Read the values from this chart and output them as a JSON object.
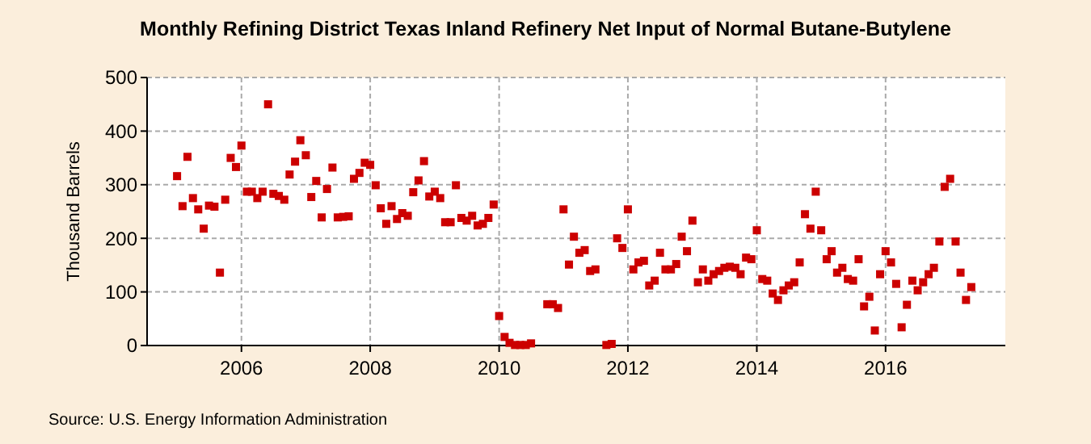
{
  "chart_data": {
    "type": "scatter",
    "title": "Monthly Refining District Texas Inland Refinery Net Input of Normal Butane-Butylene",
    "ylabel": "Thousand Barrels",
    "annotations": [
      "Source: U.S. Energy Information Administration"
    ],
    "x": [
      "2005-01",
      "2005-02",
      "2005-03",
      "2005-04",
      "2005-05",
      "2005-06",
      "2005-07",
      "2005-08",
      "2005-09",
      "2005-10",
      "2005-11",
      "2005-12",
      "2006-01",
      "2006-02",
      "2006-03",
      "2006-04",
      "2006-05",
      "2006-06",
      "2006-07",
      "2006-08",
      "2006-09",
      "2006-10",
      "2006-11",
      "2006-12",
      "2007-01",
      "2007-02",
      "2007-03",
      "2007-04",
      "2007-05",
      "2007-06",
      "2007-07",
      "2007-08",
      "2007-09",
      "2007-10",
      "2007-11",
      "2007-12",
      "2008-01",
      "2008-02",
      "2008-03",
      "2008-04",
      "2008-05",
      "2008-06",
      "2008-07",
      "2008-08",
      "2008-09",
      "2008-10",
      "2008-11",
      "2008-12",
      "2009-01",
      "2009-02",
      "2009-03",
      "2009-04",
      "2009-05",
      "2009-06",
      "2009-07",
      "2009-08",
      "2009-09",
      "2009-10",
      "2009-11",
      "2009-12",
      "2010-01",
      "2010-02",
      "2010-03",
      "2010-04",
      "2010-05",
      "2010-06",
      "2010-07",
      "2010-08",
      "2010-09",
      "2010-10",
      "2010-11",
      "2010-12",
      "2011-01",
      "2011-02",
      "2011-03",
      "2011-04",
      "2011-05",
      "2011-06",
      "2011-07",
      "2011-08",
      "2011-09",
      "2011-10",
      "2011-11",
      "2011-12",
      "2012-01",
      "2012-02",
      "2012-03",
      "2012-04",
      "2012-05",
      "2012-06",
      "2012-07",
      "2012-08",
      "2012-09",
      "2012-10",
      "2012-11",
      "2012-12",
      "2013-01",
      "2013-02",
      "2013-03",
      "2013-04",
      "2013-05",
      "2013-06",
      "2013-07",
      "2013-08",
      "2013-09",
      "2013-10",
      "2013-11",
      "2013-12",
      "2014-01",
      "2014-02",
      "2014-03",
      "2014-04",
      "2014-05",
      "2014-06",
      "2014-07",
      "2014-08",
      "2014-09",
      "2014-10",
      "2014-11",
      "2014-12",
      "2015-01",
      "2015-02",
      "2015-03",
      "2015-04",
      "2015-05",
      "2015-06",
      "2015-07",
      "2015-08",
      "2015-09",
      "2015-10",
      "2015-11",
      "2015-12",
      "2016-01",
      "2016-02",
      "2016-03",
      "2016-04",
      "2016-05",
      "2016-06",
      "2016-07",
      "2016-08",
      "2016-09",
      "2016-10",
      "2016-11",
      "2016-12",
      "2017-01",
      "2017-02",
      "2017-03",
      "2017-04",
      "2017-05"
    ],
    "series": [
      {
        "color": "#cc0000",
        "values": [
          316,
          260,
          352,
          275,
          254,
          218,
          261,
          259,
          136,
          272,
          350,
          333,
          373,
          287,
          287,
          275,
          287,
          450,
          283,
          279,
          272,
          319,
          343,
          383,
          355,
          277,
          307,
          239,
          292,
          332,
          239,
          240,
          241,
          311,
          322,
          341,
          337,
          299,
          256,
          227,
          260,
          236,
          247,
          242,
          286,
          308,
          344,
          278,
          287,
          275,
          230,
          230,
          299,
          238,
          233,
          242,
          224,
          227,
          238,
          263,
          55,
          16,
          5,
          1,
          1,
          1,
          4,
          null,
          null,
          77,
          77,
          70,
          254,
          151,
          203,
          173,
          178,
          139,
          142,
          null,
          1,
          3,
          200,
          182,
          254,
          142,
          155,
          158,
          112,
          121,
          173,
          142,
          142,
          152,
          203,
          176,
          233,
          118,
          142,
          121,
          133,
          139,
          145,
          147,
          145,
          133,
          164,
          161,
          215,
          124,
          121,
          97,
          85,
          103,
          112,
          118,
          155,
          245,
          218,
          287,
          215,
          161,
          176,
          136,
          145,
          124,
          121,
          161,
          73,
          91,
          28,
          133,
          176,
          155,
          115,
          34,
          76,
          121,
          103,
          118,
          133,
          145,
          194,
          296,
          311,
          194,
          136,
          85,
          109
        ]
      }
    ],
    "xlim": [
      "2004-07-15",
      "2017-11-10"
    ],
    "xticks": [
      {
        "value": "2006-01-01",
        "label": "2006"
      },
      {
        "value": "2008-01-01",
        "label": "2008"
      },
      {
        "value": "2010-01-01",
        "label": "2010"
      },
      {
        "value": "2012-01-01",
        "label": "2012"
      },
      {
        "value": "2014-01-01",
        "label": "2014"
      },
      {
        "value": "2016-01-01",
        "label": "2016"
      }
    ],
    "ylim": [
      0,
      500
    ],
    "yticks": [
      0,
      100,
      200,
      300,
      400,
      500
    ],
    "grid": true,
    "marker": "square"
  }
}
